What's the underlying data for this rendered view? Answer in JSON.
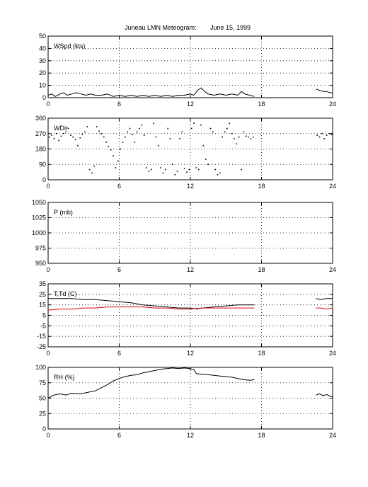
{
  "title": "Juneau LMN Meteogram:",
  "date": "June 15, 1999",
  "chart_data": [
    {
      "type": "line",
      "label": "WSpd (kts)",
      "xlim": [
        0,
        24
      ],
      "ylim": [
        0,
        50
      ],
      "xticks": [
        0,
        6,
        12,
        18,
        24
      ],
      "yticks": [
        0,
        10,
        20,
        30,
        40,
        50
      ],
      "grid": true,
      "series": [
        {
          "color": "#000000",
          "style": "line",
          "points": [
            [
              0.0,
              2
            ],
            [
              0.3,
              3
            ],
            [
              0.6,
              1
            ],
            [
              1.0,
              3
            ],
            [
              1.3,
              4
            ],
            [
              1.6,
              2
            ],
            [
              2.0,
              3
            ],
            [
              2.4,
              4
            ],
            [
              2.8,
              3
            ],
            [
              3.2,
              2
            ],
            [
              3.6,
              3
            ],
            [
              4.0,
              2
            ],
            [
              4.5,
              2
            ],
            [
              5.0,
              3
            ],
            [
              5.5,
              1
            ],
            [
              6.0,
              2
            ],
            [
              6.5,
              1
            ],
            [
              7.0,
              2
            ],
            [
              7.5,
              1
            ],
            [
              8.0,
              2
            ],
            [
              8.5,
              1
            ],
            [
              9.0,
              2
            ],
            [
              9.5,
              1
            ],
            [
              10.0,
              2
            ],
            [
              10.5,
              1
            ],
            [
              11.0,
              2
            ],
            [
              11.5,
              2
            ],
            [
              12.0,
              3
            ],
            [
              12.3,
              2
            ],
            [
              12.6,
              6
            ],
            [
              12.9,
              8
            ],
            [
              13.2,
              5
            ],
            [
              13.5,
              3
            ],
            [
              14.0,
              2
            ],
            [
              14.5,
              3
            ],
            [
              15.0,
              2
            ],
            [
              15.5,
              3
            ],
            [
              16.0,
              2
            ],
            [
              16.3,
              5
            ],
            [
              16.6,
              3
            ],
            [
              17.0,
              2
            ],
            [
              17.4,
              1
            ]
          ]
        },
        {
          "color": "#000000",
          "style": "line",
          "points": [
            [
              22.6,
              7
            ],
            [
              22.9,
              6
            ],
            [
              23.2,
              5
            ],
            [
              23.5,
              5
            ],
            [
              23.8,
              4
            ],
            [
              24.0,
              4
            ]
          ]
        }
      ]
    },
    {
      "type": "scatter",
      "label": "WDir",
      "xlim": [
        0,
        24
      ],
      "ylim": [
        0,
        360
      ],
      "xticks": [
        0,
        6,
        12,
        18,
        24
      ],
      "yticks": [
        0,
        90,
        180,
        270,
        360
      ],
      "grid": true,
      "series": [
        {
          "color": "#000000",
          "style": "dots",
          "points": [
            [
              0.1,
              250
            ],
            [
              0.3,
              260
            ],
            [
              0.5,
              240
            ],
            [
              0.7,
              270
            ],
            [
              0.9,
              230
            ],
            [
              1.1,
              255
            ],
            [
              1.3,
              270
            ],
            [
              1.5,
              280
            ],
            [
              1.7,
              300
            ],
            [
              1.9,
              260
            ],
            [
              2.1,
              250
            ],
            [
              2.3,
              235
            ],
            [
              2.5,
              200
            ],
            [
              2.7,
              245
            ],
            [
              2.9,
              265
            ],
            [
              3.1,
              280
            ],
            [
              3.3,
              310
            ],
            [
              3.5,
              60
            ],
            [
              3.7,
              40
            ],
            [
              3.9,
              80
            ],
            [
              4.1,
              310
            ],
            [
              4.3,
              285
            ],
            [
              4.5,
              270
            ],
            [
              4.7,
              250
            ],
            [
              4.9,
              220
            ],
            [
              5.1,
              195
            ],
            [
              5.3,
              175
            ],
            [
              5.5,
              140
            ],
            [
              5.7,
              70
            ],
            [
              5.9,
              110
            ],
            [
              6.1,
              180
            ],
            [
              6.3,
              220
            ],
            [
              6.5,
              250
            ],
            [
              6.7,
              280
            ],
            [
              6.9,
              300
            ],
            [
              7.1,
              265
            ],
            [
              7.3,
              220
            ],
            [
              7.5,
              280
            ],
            [
              7.7,
              300
            ],
            [
              7.9,
              320
            ],
            [
              8.1,
              260
            ],
            [
              8.3,
              70
            ],
            [
              8.5,
              50
            ],
            [
              8.7,
              60
            ],
            [
              8.9,
              330
            ],
            [
              9.1,
              250
            ],
            [
              9.3,
              200
            ],
            [
              9.5,
              70
            ],
            [
              9.7,
              40
            ],
            [
              9.9,
              60
            ],
            [
              10.1,
              300
            ],
            [
              10.3,
              240
            ],
            [
              10.5,
              90
            ],
            [
              10.7,
              30
            ],
            [
              10.9,
              50
            ],
            [
              11.1,
              240
            ],
            [
              11.3,
              280
            ],
            [
              11.5,
              65
            ],
            [
              11.7,
              45
            ],
            [
              11.9,
              60
            ],
            [
              12.1,
              300
            ],
            [
              12.3,
              330
            ],
            [
              12.5,
              70
            ],
            [
              12.7,
              60
            ],
            [
              12.9,
              320
            ],
            [
              13.1,
              200
            ],
            [
              13.3,
              120
            ],
            [
              13.5,
              90
            ],
            [
              13.7,
              300
            ],
            [
              13.9,
              280
            ],
            [
              14.1,
              60
            ],
            [
              14.3,
              30
            ],
            [
              14.5,
              40
            ],
            [
              14.7,
              250
            ],
            [
              14.9,
              280
            ],
            [
              15.1,
              300
            ],
            [
              15.3,
              330
            ],
            [
              15.5,
              270
            ],
            [
              15.7,
              240
            ],
            [
              15.9,
              210
            ],
            [
              16.1,
              250
            ],
            [
              16.3,
              60
            ],
            [
              16.5,
              280
            ],
            [
              16.7,
              255
            ],
            [
              16.9,
              250
            ],
            [
              17.1,
              240
            ],
            [
              17.3,
              250
            ]
          ]
        },
        {
          "color": "#000000",
          "style": "dots",
          "points": [
            [
              22.7,
              260
            ],
            [
              22.9,
              250
            ],
            [
              23.1,
              270
            ],
            [
              23.3,
              240
            ],
            [
              23.5,
              260
            ],
            [
              23.7,
              270
            ],
            [
              23.9,
              265
            ],
            [
              24.0,
              270
            ]
          ]
        }
      ]
    },
    {
      "type": "line",
      "label": "P (mb)",
      "xlim": [
        0,
        24
      ],
      "ylim": [
        950,
        1050
      ],
      "xticks": [
        0,
        6,
        12,
        18,
        24
      ],
      "yticks": [
        950,
        975,
        1000,
        1025,
        1050
      ],
      "grid": true,
      "series": []
    },
    {
      "type": "line",
      "label": "T,Td (C)",
      "xlim": [
        0,
        24
      ],
      "ylim": [
        -25,
        35
      ],
      "xticks": [
        0,
        6,
        12,
        18,
        24
      ],
      "yticks": [
        -25,
        -15,
        -5,
        5,
        15,
        25,
        35
      ],
      "grid": true,
      "series": [
        {
          "color": "#000000",
          "style": "line",
          "points": [
            [
              0.0,
              21
            ],
            [
              2.0,
              21
            ],
            [
              3.0,
              20
            ],
            [
              4.0,
              20
            ],
            [
              5.0,
              19
            ],
            [
              6.0,
              18
            ],
            [
              7.0,
              17
            ],
            [
              8.0,
              15
            ],
            [
              9.0,
              14
            ],
            [
              10.0,
              13
            ],
            [
              11.0,
              12
            ],
            [
              12.0,
              12
            ],
            [
              12.5,
              11
            ],
            [
              13.0,
              12
            ],
            [
              14.0,
              13
            ],
            [
              15.0,
              14
            ],
            [
              16.0,
              15
            ],
            [
              17.4,
              15
            ]
          ]
        },
        {
          "color": "#000000",
          "style": "line",
          "points": [
            [
              22.6,
              21
            ],
            [
              23.0,
              20
            ],
            [
              23.5,
              21
            ],
            [
              24.0,
              21
            ]
          ]
        },
        {
          "color": "#dd0000",
          "style": "line",
          "points": [
            [
              0.0,
              10
            ],
            [
              1.0,
              11
            ],
            [
              2.0,
              11
            ],
            [
              3.0,
              12
            ],
            [
              4.0,
              12
            ],
            [
              5.0,
              13
            ],
            [
              6.0,
              13
            ],
            [
              7.0,
              13
            ],
            [
              8.0,
              13
            ],
            [
              9.0,
              12
            ],
            [
              10.0,
              12
            ],
            [
              11.0,
              11
            ],
            [
              12.0,
              11
            ],
            [
              13.0,
              12
            ],
            [
              14.0,
              12
            ],
            [
              15.0,
              12
            ],
            [
              16.0,
              12
            ],
            [
              17.4,
              12
            ]
          ]
        },
        {
          "color": "#dd0000",
          "style": "line",
          "points": [
            [
              22.6,
              12
            ],
            [
              23.0,
              12
            ],
            [
              23.5,
              11
            ],
            [
              24.0,
              12
            ]
          ]
        }
      ]
    },
    {
      "type": "line",
      "label": "RH (%)",
      "xlim": [
        0,
        24
      ],
      "ylim": [
        0,
        100
      ],
      "xticks": [
        0,
        6,
        12,
        18,
        24
      ],
      "yticks": [
        0,
        25,
        50,
        75,
        100
      ],
      "grid": true,
      "series": [
        {
          "color": "#000000",
          "style": "line",
          "points": [
            [
              0.0,
              50
            ],
            [
              0.5,
              55
            ],
            [
              1.0,
              57
            ],
            [
              1.5,
              55
            ],
            [
              2.0,
              58
            ],
            [
              2.5,
              57
            ],
            [
              3.0,
              58
            ],
            [
              3.5,
              60
            ],
            [
              4.0,
              62
            ],
            [
              4.5,
              67
            ],
            [
              5.0,
              72
            ],
            [
              5.5,
              78
            ],
            [
              6.0,
              82
            ],
            [
              6.5,
              85
            ],
            [
              7.0,
              87
            ],
            [
              7.5,
              88
            ],
            [
              8.0,
              91
            ],
            [
              8.5,
              93
            ],
            [
              9.0,
              95
            ],
            [
              9.5,
              97
            ],
            [
              10.0,
              98
            ],
            [
              10.5,
              99
            ],
            [
              11.0,
              98
            ],
            [
              11.5,
              99
            ],
            [
              12.0,
              98
            ],
            [
              12.3,
              96
            ],
            [
              12.5,
              90
            ],
            [
              13.0,
              89
            ],
            [
              13.5,
              88
            ],
            [
              14.0,
              87
            ],
            [
              14.5,
              86
            ],
            [
              15.0,
              85
            ],
            [
              15.5,
              84
            ],
            [
              16.0,
              82
            ],
            [
              16.5,
              80
            ],
            [
              17.0,
              79
            ],
            [
              17.4,
              80
            ]
          ]
        },
        {
          "color": "#000000",
          "style": "line",
          "points": [
            [
              22.6,
              55
            ],
            [
              22.9,
              57
            ],
            [
              23.2,
              54
            ],
            [
              23.5,
              56
            ],
            [
              23.8,
              53
            ],
            [
              24.0,
              52
            ]
          ]
        }
      ]
    }
  ]
}
